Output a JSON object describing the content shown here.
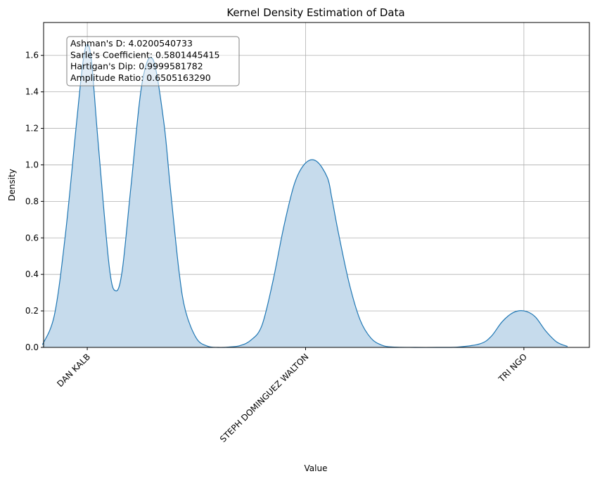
{
  "chart_data": {
    "type": "area",
    "title": "Kernel Density Estimation of Data",
    "xlabel": "Value",
    "ylabel": "Density",
    "xlim": [
      -0.2,
      2.3
    ],
    "ylim": [
      0,
      1.78
    ],
    "grid": true,
    "x_ticks": [
      {
        "value": 0,
        "label": "DAN KALB"
      },
      {
        "value": 1,
        "label": "STEPH DOMINGUEZ WALTON"
      },
      {
        "value": 2,
        "label": "TRI NGO"
      }
    ],
    "y_ticks": [
      {
        "value": 0.0,
        "label": "0.0"
      },
      {
        "value": 0.2,
        "label": "0.2"
      },
      {
        "value": 0.4,
        "label": "0.4"
      },
      {
        "value": 0.6,
        "label": "0.6"
      },
      {
        "value": 0.8,
        "label": "0.8"
      },
      {
        "value": 1.0,
        "label": "1.0"
      },
      {
        "value": 1.2,
        "label": "1.2"
      },
      {
        "value": 1.4,
        "label": "1.4"
      },
      {
        "value": 1.6,
        "label": "1.6"
      }
    ],
    "series": [
      {
        "x": [
          -0.205,
          -0.15,
          -0.1,
          -0.05,
          -0.02,
          0.0,
          0.02,
          0.05,
          0.1,
          0.13,
          0.16,
          0.2,
          0.25,
          0.3,
          0.35,
          0.38,
          0.42,
          0.45,
          0.5,
          0.55,
          0.6,
          0.65,
          0.7,
          0.75,
          0.8,
          0.85,
          0.9,
          0.95,
          1.0,
          1.05,
          1.1,
          1.12,
          1.15,
          1.2,
          1.25,
          1.3,
          1.35,
          1.4,
          1.5,
          1.6,
          1.7,
          1.8,
          1.85,
          1.9,
          1.95,
          2.0,
          2.05,
          2.1,
          2.15,
          2.2
        ],
        "y": [
          0.015,
          0.18,
          0.62,
          1.22,
          1.56,
          1.66,
          1.56,
          1.12,
          0.45,
          0.31,
          0.42,
          0.88,
          1.44,
          1.58,
          1.24,
          0.88,
          0.42,
          0.2,
          0.05,
          0.007,
          0.0,
          0.002,
          0.01,
          0.04,
          0.12,
          0.36,
          0.66,
          0.9,
          1.01,
          1.02,
          0.93,
          0.82,
          0.63,
          0.35,
          0.15,
          0.05,
          0.012,
          0.002,
          0.0,
          0.0,
          0.002,
          0.02,
          0.06,
          0.14,
          0.19,
          0.2,
          0.17,
          0.09,
          0.03,
          0.005
        ],
        "color": "#1f77b4",
        "fill_color": "#c6dbec"
      }
    ],
    "annotation": [
      "Ashman's D: 4.0200540733",
      "Sarle's Coefficient: 0.5801445415",
      "Hartigan's Dip: 0.9999581782",
      "Amplitude Ratio: 0.6505163290"
    ]
  }
}
